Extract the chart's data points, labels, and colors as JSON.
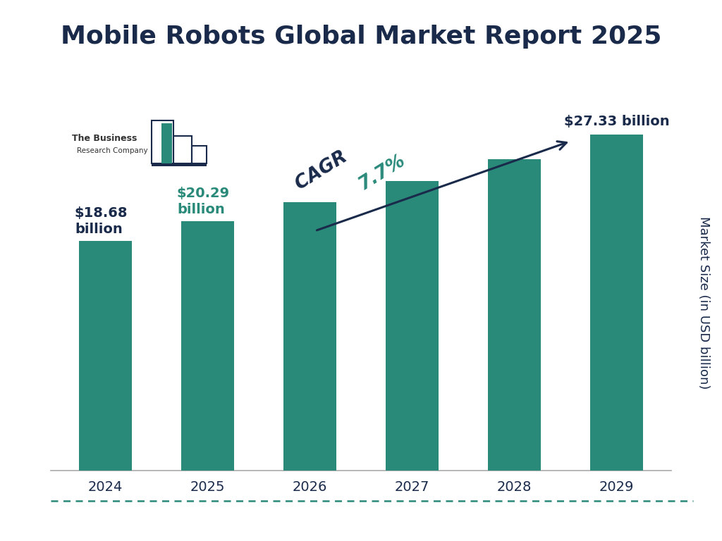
{
  "title": "Mobile Robots Global Market Report 2025",
  "years": [
    "2024",
    "2025",
    "2026",
    "2027",
    "2028",
    "2029"
  ],
  "values": [
    18.68,
    20.29,
    21.86,
    23.53,
    25.34,
    27.33
  ],
  "bar_color": "#2a8a7a",
  "background_color": "#ffffff",
  "title_color": "#1a2a4a",
  "ylabel": "Market Size (in USD billion)",
  "ylabel_color": "#1a2a4a",
  "label_2024": "$18.68\nbillion",
  "label_2025": "$20.29\nbillion",
  "label_2029": "$27.33 billion",
  "label_2024_color": "#1a2a4a",
  "label_2025_color": "#2a8a7a",
  "label_2029_color": "#1a2a4a",
  "cagr_prefix": "CAGR ",
  "cagr_value": "7.7%",
  "cagr_prefix_color": "#1a2a4a",
  "cagr_value_color": "#2a8a7a",
  "arrow_color": "#1a2a4a",
  "dashed_line_color": "#2a8a7a",
  "logo_building_color": "#2a8a7a",
  "logo_outline_color": "#1a2a4a",
  "logo_text_color": "#333333",
  "ylim": [
    0,
    33
  ],
  "title_fontsize": 26,
  "tick_fontsize": 14,
  "ylabel_fontsize": 13,
  "label_fontsize": 14,
  "cagr_fontsize": 19
}
